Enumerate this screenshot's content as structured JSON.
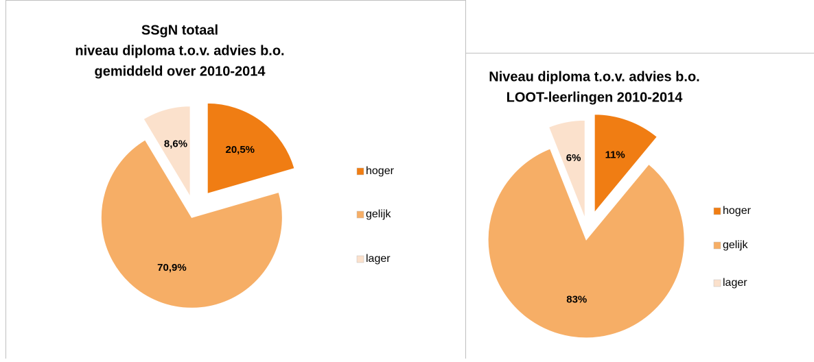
{
  "chart_data": [
    {
      "type": "pie",
      "title": [
        "SSgN totaal",
        "niveau diploma t.o.v. advies b.o.",
        "gemiddeld over 2010-2014"
      ],
      "categories": [
        "hoger",
        "gelijk",
        "lager"
      ],
      "values": [
        20.5,
        70.9,
        8.6
      ],
      "value_labels": [
        "20,5%",
        "70,9%",
        "8,6%"
      ],
      "colors": [
        "#f07d13",
        "#f6ae66",
        "#fbe1cc"
      ]
    },
    {
      "type": "pie",
      "title": [
        "Niveau diploma t.o.v. advies b.o.",
        "LOOT-leerlingen 2010-2014"
      ],
      "categories": [
        "hoger",
        "gelijk",
        "lager"
      ],
      "values": [
        11,
        83,
        6
      ],
      "value_labels": [
        "11%",
        "83%",
        "6%"
      ],
      "colors": [
        "#f07d13",
        "#f6ae66",
        "#fbe1cc"
      ]
    }
  ]
}
